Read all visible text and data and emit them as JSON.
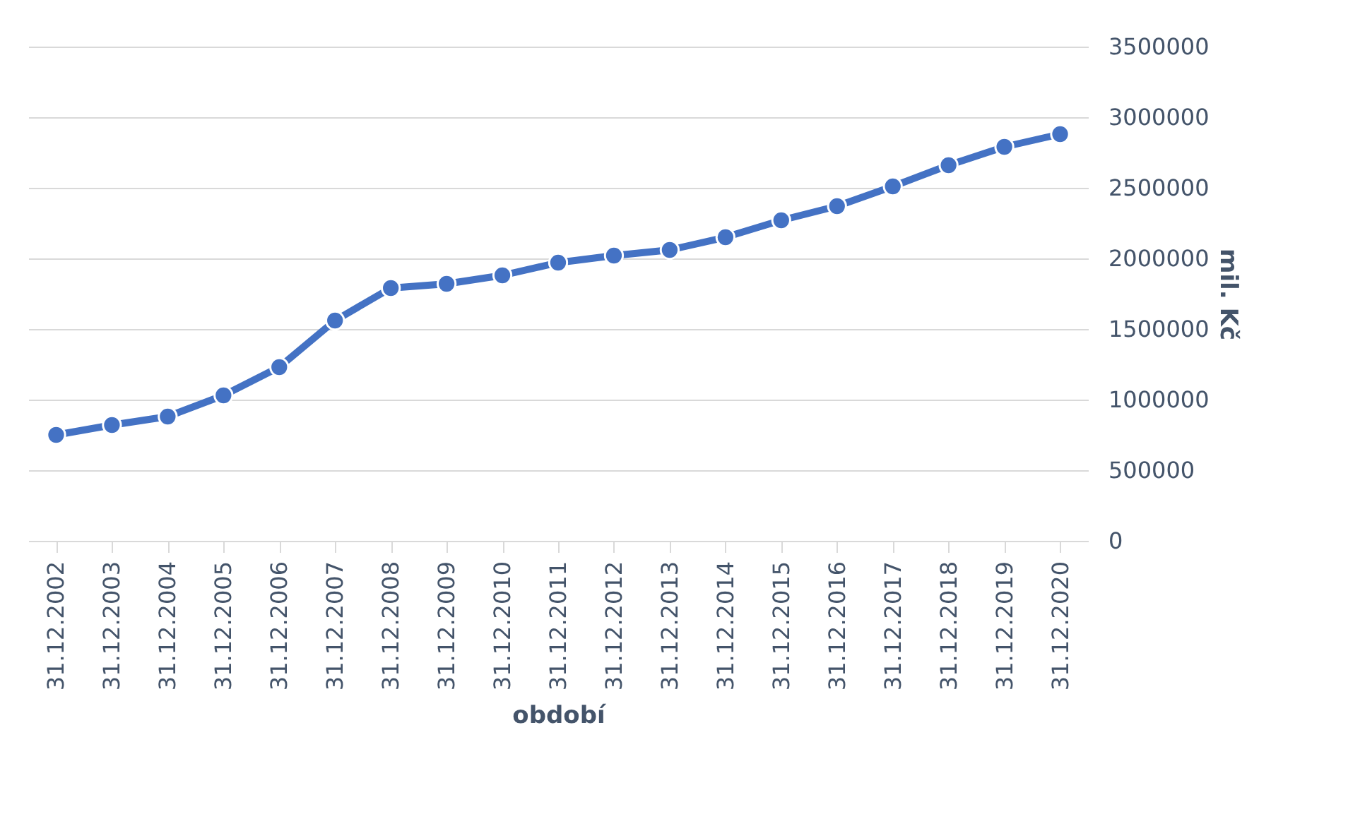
{
  "chart_data": {
    "type": "line",
    "xlabel": "období",
    "ylabel": "mil. Kč",
    "categories": [
      "31.12.2002",
      "31.12.2003",
      "31.12.2004",
      "31.12.2005",
      "31.12.2006",
      "31.12.2007",
      "31.12.2008",
      "31.12.2009",
      "31.12.2010",
      "31.12.2011",
      "31.12.2012",
      "31.12.2013",
      "31.12.2014",
      "31.12.2015",
      "31.12.2016",
      "31.12.2017",
      "31.12.2018",
      "31.12.2019",
      "31.12.2020"
    ],
    "series": [
      {
        "color": "#4472c4",
        "values": [
          750000,
          820000,
          880000,
          1030000,
          1230000,
          1560000,
          1790000,
          1820000,
          1880000,
          1970000,
          2020000,
          2060000,
          2150000,
          2270000,
          2370000,
          2510000,
          2660000,
          2790000,
          2880000
        ]
      }
    ],
    "ylim": [
      0,
      3500000
    ],
    "yticks": [
      0,
      500000,
      1000000,
      1500000,
      2000000,
      2500000,
      3000000,
      3500000
    ],
    "grid": "y",
    "marker": "circle",
    "line_style": "solid",
    "legend": false
  }
}
